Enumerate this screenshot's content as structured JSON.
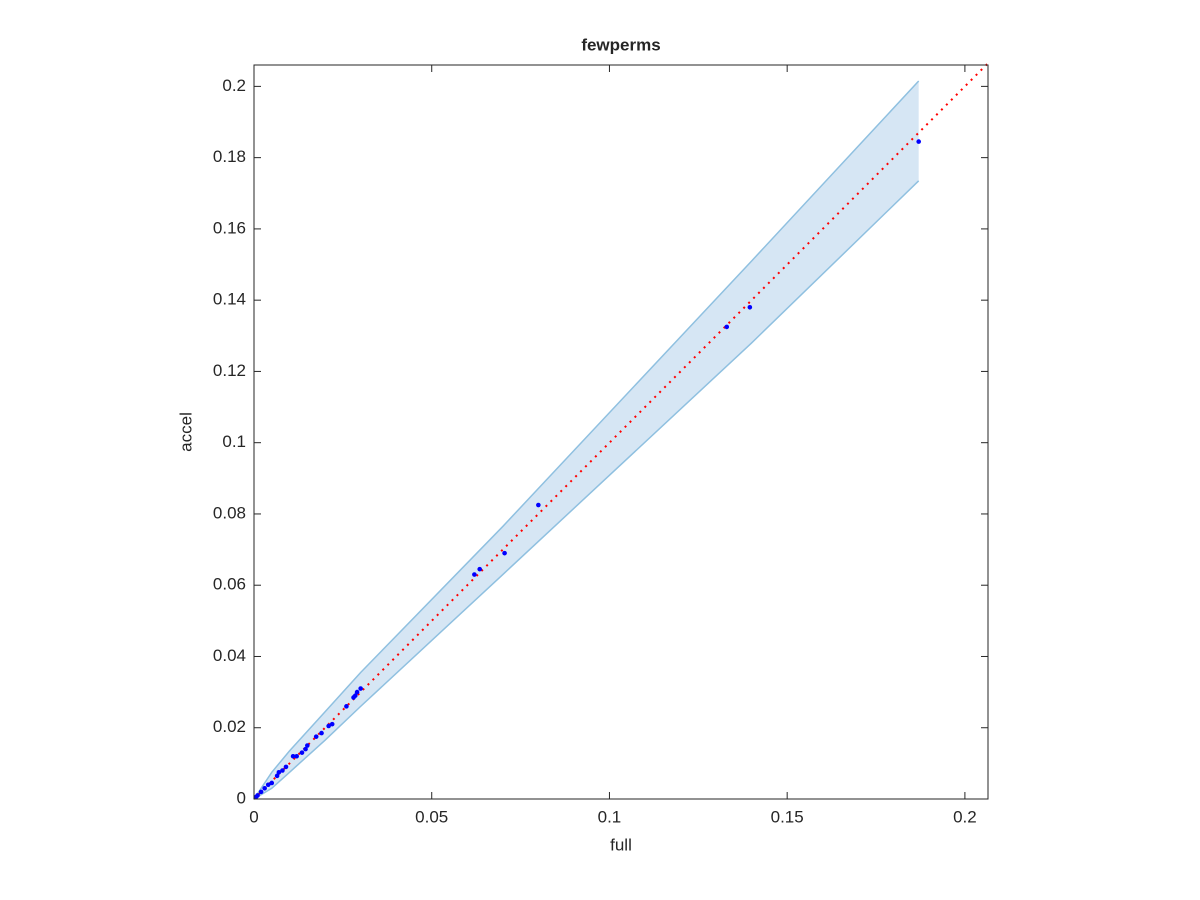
{
  "chart_data": {
    "type": "scatter",
    "title": "fewperms",
    "x_label": "full",
    "y_label": "accel",
    "xlim": [
      0,
      0.2065
    ],
    "ylim": [
      0,
      0.206
    ],
    "xticks": [
      0,
      0.05,
      0.1,
      0.15,
      0.2
    ],
    "yticks": [
      0,
      0.02,
      0.04,
      0.06,
      0.08,
      0.1,
      0.12,
      0.14,
      0.16,
      0.18,
      0.2
    ],
    "band": {
      "color": "#d6e6f4",
      "edge_color": "#8fc0e0",
      "x": [
        0,
        0.005,
        0.01,
        0.02,
        0.03,
        0.07,
        0.14,
        0.187
      ],
      "upper": [
        0,
        0.0075,
        0.0135,
        0.0245,
        0.0355,
        0.0765,
        0.151,
        0.2015
      ],
      "lower": [
        0,
        0.003,
        0.0075,
        0.0165,
        0.026,
        0.063,
        0.128,
        0.1735
      ]
    },
    "reference_line": {
      "color": "#ff0000",
      "x": [
        0,
        0.2065
      ],
      "y": [
        0,
        0.2065
      ]
    },
    "series": [
      {
        "color": "#0000ff",
        "x": [
          0.187,
          0.1395,
          0.133,
          0.08,
          0.0705,
          0.0635,
          0.062,
          0.03,
          0.029,
          0.0285,
          0.028,
          0.026,
          0.022,
          0.021,
          0.019,
          0.0175,
          0.015,
          0.0145,
          0.0135,
          0.012,
          0.011,
          0.009,
          0.008,
          0.007,
          0.0065,
          0.005,
          0.004,
          0.003,
          0.002,
          0.001,
          0.0005
        ],
        "values": [
          0.1845,
          0.138,
          0.1325,
          0.0825,
          0.069,
          0.0645,
          0.063,
          0.031,
          0.03,
          0.029,
          0.0285,
          0.026,
          0.021,
          0.0205,
          0.0185,
          0.0175,
          0.015,
          0.014,
          0.013,
          0.012,
          0.012,
          0.009,
          0.008,
          0.0075,
          0.0065,
          0.0045,
          0.004,
          0.003,
          0.002,
          0.001,
          0.0005
        ]
      }
    ]
  }
}
